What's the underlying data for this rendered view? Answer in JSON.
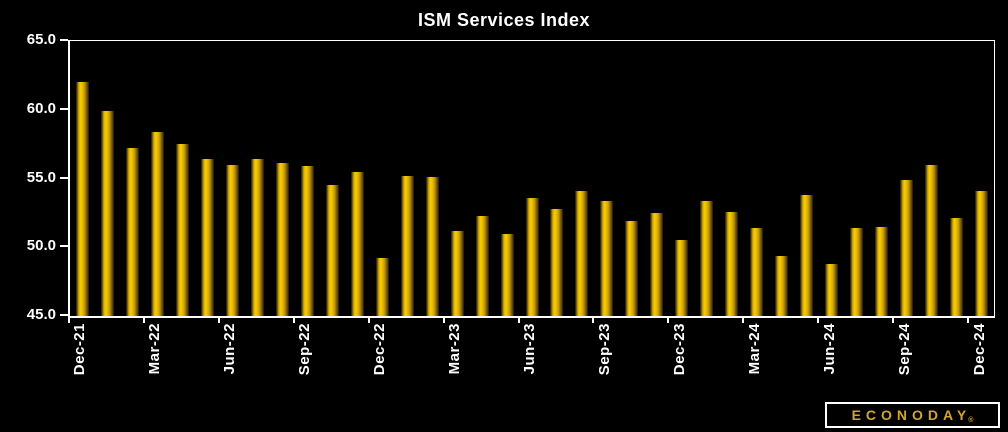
{
  "title": "ISM Services Index",
  "branding": {
    "logo_text": "ECONODAY",
    "registered_mark": "®"
  },
  "colors": {
    "background": "#000000",
    "frame": "#ffffff",
    "label": "#ffffff",
    "bar_bright": "#f8cb00",
    "bar_mid": "#c89e00",
    "bar_edge": "#171100",
    "bar_shadow": "#4a3900",
    "logo_gold": "#d2a62c"
  },
  "chart_data": {
    "type": "bar",
    "title": "ISM Services Index",
    "x": [
      "Dec-21",
      "Jan-22",
      "Feb-22",
      "Mar-22",
      "Apr-22",
      "May-22",
      "Jun-22",
      "Jul-22",
      "Aug-22",
      "Sep-22",
      "Oct-22",
      "Nov-22",
      "Dec-22",
      "Jan-23",
      "Feb-23",
      "Mar-23",
      "Apr-23",
      "May-23",
      "Jun-23",
      "Jul-23",
      "Aug-23",
      "Sep-23",
      "Oct-23",
      "Nov-23",
      "Dec-23",
      "Jan-24",
      "Feb-24",
      "Mar-24",
      "Apr-24",
      "May-24",
      "Jun-24",
      "Jul-24",
      "Aug-24",
      "Sep-24",
      "Oct-24",
      "Nov-24",
      "Dec-24"
    ],
    "values": [
      62.0,
      59.9,
      57.2,
      58.4,
      57.5,
      56.4,
      56.0,
      56.4,
      56.1,
      55.9,
      54.5,
      55.5,
      49.2,
      55.2,
      55.1,
      51.2,
      52.3,
      51.0,
      53.6,
      52.8,
      54.1,
      53.4,
      51.9,
      52.5,
      50.5,
      53.4,
      52.6,
      51.4,
      49.4,
      53.8,
      48.8,
      51.4,
      51.5,
      54.9,
      56.0,
      52.1,
      54.1
    ],
    "ylim": [
      45.0,
      65.0
    ],
    "yticks": [
      45.0,
      50.0,
      55.0,
      60.0,
      65.0
    ],
    "ytick_labels": [
      "45.0",
      "50.0",
      "55.0",
      "60.0",
      "65.0"
    ],
    "xtick_label_every": 3,
    "grid": false,
    "legend": false
  }
}
